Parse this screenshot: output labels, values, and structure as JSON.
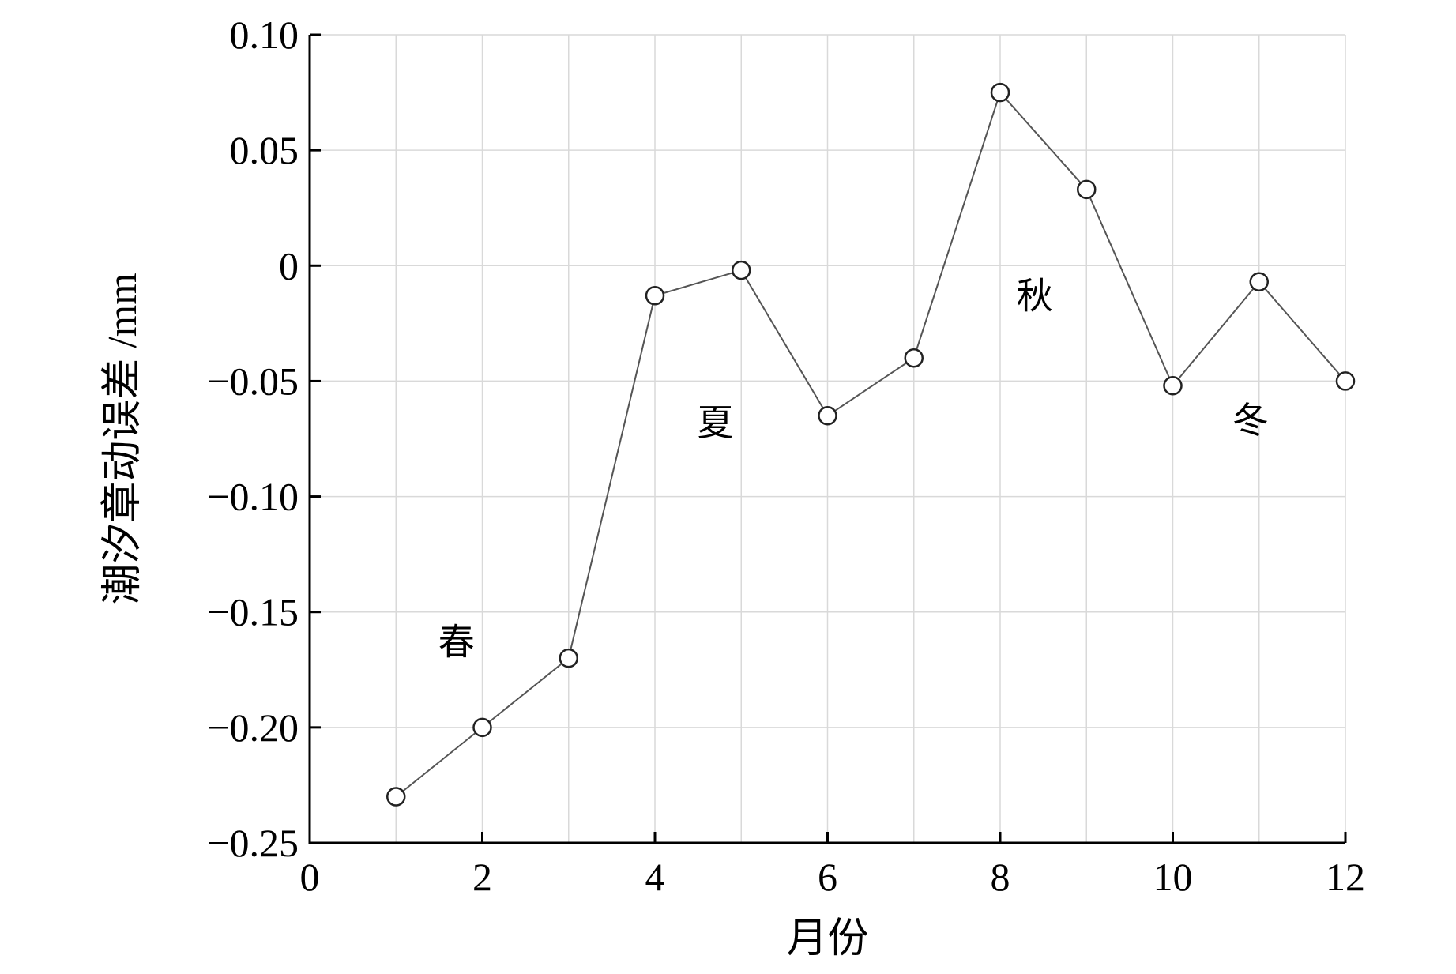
{
  "chart_data": {
    "type": "line",
    "title": "",
    "xlabel": "月份",
    "ylabel": "潮汐章动误差 /mm",
    "xlim": [
      0,
      12
    ],
    "ylim": [
      -0.25,
      0.1
    ],
    "grid": true,
    "xticks": [
      0,
      2,
      4,
      6,
      8,
      10,
      12
    ],
    "xtick_labels": [
      "0",
      "2",
      "4",
      "6",
      "8",
      "10",
      "12"
    ],
    "yticks": [
      0.1,
      0.05,
      0,
      -0.05,
      -0.1,
      -0.15,
      -0.2,
      -0.25
    ],
    "ytick_labels": [
      "0.10",
      "0.05",
      "0",
      "−0.05",
      "−0.10",
      "−0.15",
      "−0.20",
      "−0.25"
    ],
    "series": [
      {
        "x": [
          1,
          2,
          3,
          4,
          5,
          6,
          7,
          8,
          9,
          10,
          11,
          12
        ],
        "values": [
          -0.23,
          -0.2,
          -0.17,
          -0.013,
          -0.002,
          -0.065,
          -0.04,
          0.075,
          0.033,
          -0.052,
          -0.007,
          -0.05
        ],
        "marker": "circle",
        "color": "#555555"
      }
    ],
    "annotations": [
      {
        "text": "春",
        "x": 1.7,
        "y": -0.163
      },
      {
        "text": "夏",
        "x": 4.7,
        "y": -0.068
      },
      {
        "text": "秋",
        "x": 8.4,
        "y": -0.013
      },
      {
        "text": "冬",
        "x": 10.9,
        "y": -0.067
      }
    ]
  }
}
